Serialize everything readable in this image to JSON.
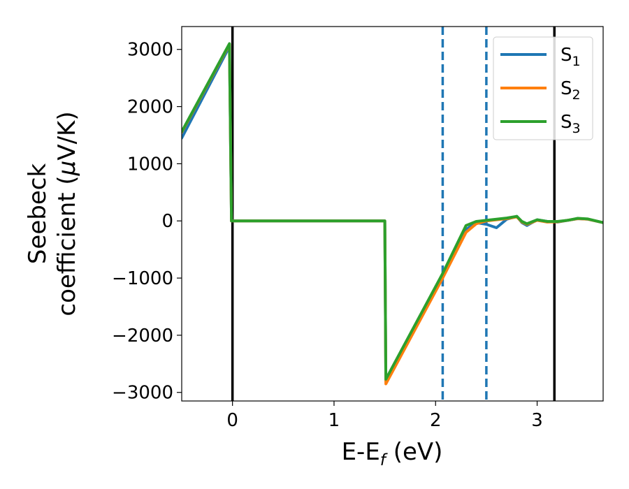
{
  "chart_data": {
    "type": "line",
    "xlabel": {
      "main": "E-E",
      "sub": "f",
      "unit": " (eV)"
    },
    "ylabel": {
      "line1": "Seebeck",
      "line2_pre": "coefficient  (",
      "mu": "μ",
      "line2_post": "V/K)"
    },
    "xlim": [
      -0.5,
      3.65
    ],
    "ylim": [
      -3150,
      3400
    ],
    "x_ticks": [
      0,
      1,
      2,
      3
    ],
    "x_tick_labels": [
      "0",
      "1",
      "2",
      "3"
    ],
    "y_ticks": [
      3000,
      2000,
      1000,
      0,
      -1000,
      -2000,
      -3000
    ],
    "y_tick_labels": [
      "3000",
      "2000",
      "1000",
      "0",
      "−1000",
      "−2000",
      "−3000"
    ],
    "grid": false,
    "legend_position": "top-right",
    "vertical_lines": [
      {
        "x": 0,
        "style": "solid",
        "color": "#000000"
      },
      {
        "x": 3.17,
        "style": "solid",
        "color": "#000000"
      },
      {
        "x": 2.07,
        "style": "dashed",
        "color": "#1f77b4"
      },
      {
        "x": 2.5,
        "style": "dashed",
        "color": "#1f77b4"
      }
    ],
    "series": [
      {
        "name_base": "S",
        "name_sub": "1",
        "color": "#1f77b4",
        "points": [
          [
            -0.5,
            1450
          ],
          [
            -0.03,
            3050
          ],
          [
            -0.01,
            0
          ],
          [
            1.5,
            0
          ],
          [
            1.51,
            -2800
          ],
          [
            2.07,
            -950
          ],
          [
            2.3,
            -150
          ],
          [
            2.4,
            -30
          ],
          [
            2.5,
            -60
          ],
          [
            2.6,
            -120
          ],
          [
            2.7,
            30
          ],
          [
            2.8,
            80
          ],
          [
            2.85,
            -30
          ],
          [
            2.9,
            -80
          ],
          [
            3.0,
            20
          ],
          [
            3.1,
            -10
          ],
          [
            3.2,
            -20
          ],
          [
            3.3,
            10
          ],
          [
            3.4,
            40
          ],
          [
            3.5,
            30
          ],
          [
            3.65,
            -30
          ]
        ]
      },
      {
        "name_base": "S",
        "name_sub": "2",
        "color": "#ff7f0e",
        "points": [
          [
            -0.5,
            1550
          ],
          [
            -0.03,
            3090
          ],
          [
            -0.01,
            0
          ],
          [
            1.5,
            0
          ],
          [
            1.51,
            -2850
          ],
          [
            2.07,
            -1000
          ],
          [
            2.3,
            -200
          ],
          [
            2.4,
            -50
          ],
          [
            2.5,
            0
          ],
          [
            2.6,
            20
          ],
          [
            2.7,
            40
          ],
          [
            2.8,
            70
          ],
          [
            2.85,
            -20
          ],
          [
            2.9,
            -60
          ],
          [
            3.0,
            10
          ],
          [
            3.1,
            -20
          ],
          [
            3.2,
            -15
          ],
          [
            3.3,
            10
          ],
          [
            3.4,
            40
          ],
          [
            3.5,
            30
          ],
          [
            3.65,
            -30
          ]
        ]
      },
      {
        "name_base": "S",
        "name_sub": "3",
        "color": "#2ca02c",
        "points": [
          [
            -0.5,
            1560
          ],
          [
            -0.03,
            3100
          ],
          [
            -0.01,
            0
          ],
          [
            1.5,
            0
          ],
          [
            1.51,
            -2770
          ],
          [
            2.07,
            -920
          ],
          [
            2.3,
            -80
          ],
          [
            2.4,
            -10
          ],
          [
            2.5,
            10
          ],
          [
            2.6,
            30
          ],
          [
            2.7,
            50
          ],
          [
            2.8,
            80
          ],
          [
            2.85,
            -10
          ],
          [
            2.9,
            -50
          ],
          [
            3.0,
            20
          ],
          [
            3.1,
            -10
          ],
          [
            3.2,
            -10
          ],
          [
            3.3,
            10
          ],
          [
            3.4,
            45
          ],
          [
            3.5,
            35
          ],
          [
            3.65,
            -30
          ]
        ]
      }
    ]
  }
}
